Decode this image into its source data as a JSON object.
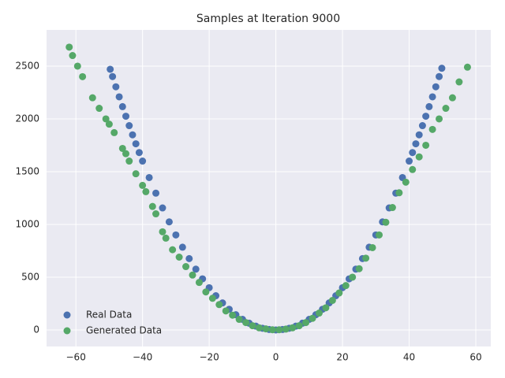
{
  "chart_data": {
    "type": "scatter",
    "title": "Samples at Iteration 9000",
    "xlim": [
      -68.8,
      64.5
    ],
    "ylim": [
      -157,
      2843
    ],
    "xticks": [
      {
        "value": -60,
        "label": "−60"
      },
      {
        "value": -40,
        "label": "−40"
      },
      {
        "value": -20,
        "label": "−20"
      },
      0,
      20,
      40,
      60
    ],
    "yticks": [
      0,
      500,
      1000,
      1500,
      2000,
      2500
    ],
    "grid": true,
    "legend": "lower left",
    "background": "#eaeaf2",
    "series": [
      {
        "name": "Real Data",
        "color": "#4c72b0",
        "x": [
          -49.7,
          -49,
          -48,
          -47,
          -46,
          -45,
          -44,
          -43,
          -42,
          -41,
          -40,
          -38,
          -36,
          -34,
          -32,
          -30,
          -28,
          -26,
          -24,
          -22,
          -20,
          -18,
          -16,
          -14,
          -12,
          -10,
          -8,
          -6,
          -4,
          -2,
          0,
          2,
          4,
          6,
          8,
          10,
          12,
          14,
          16,
          18,
          20,
          22,
          24,
          26,
          28,
          30,
          32,
          34,
          36,
          38,
          40,
          41,
          42,
          43,
          44,
          45,
          46,
          47,
          48,
          49,
          49.8
        ],
        "values": [
          2470,
          2401,
          2304,
          2209,
          2116,
          2025,
          1936,
          1849,
          1764,
          1681,
          1600,
          1444,
          1296,
          1156,
          1024,
          900,
          784,
          676,
          576,
          484,
          400,
          324,
          256,
          196,
          144,
          100,
          64,
          36,
          16,
          4,
          0,
          4,
          16,
          36,
          64,
          100,
          144,
          196,
          256,
          324,
          400,
          484,
          576,
          676,
          784,
          900,
          1024,
          1156,
          1296,
          1444,
          1600,
          1681,
          1764,
          1849,
          1936,
          2025,
          2116,
          2209,
          2304,
          2401,
          2480
        ]
      },
      {
        "name": "Generated Data",
        "color": "#55a868",
        "x": [
          -62,
          -61,
          -59.5,
          -58,
          -55,
          -53,
          -51,
          -50,
          -48.5,
          -46,
          -45,
          -44,
          -42,
          -40,
          -39,
          -37,
          -36,
          -34,
          -33,
          -31,
          -29,
          -27,
          -25,
          -23,
          -21,
          -19,
          -17,
          -15,
          -13,
          -11,
          -9,
          -7,
          -5,
          -3,
          -1,
          1,
          3,
          5,
          7,
          9,
          11,
          13,
          15,
          17,
          19,
          21,
          23,
          25,
          27,
          29,
          31,
          33,
          35,
          37,
          39,
          41,
          43,
          45,
          47,
          49,
          51,
          53,
          55,
          57.5
        ],
        "values": [
          2680,
          2600,
          2500,
          2400,
          2200,
          2100,
          2000,
          1950,
          1870,
          1720,
          1670,
          1600,
          1480,
          1370,
          1310,
          1170,
          1100,
          930,
          870,
          760,
          690,
          600,
          520,
          450,
          360,
          300,
          240,
          180,
          140,
          100,
          70,
          40,
          20,
          10,
          2,
          2,
          8,
          20,
          40,
          70,
          110,
          160,
          210,
          280,
          350,
          420,
          500,
          580,
          680,
          780,
          900,
          1020,
          1160,
          1300,
          1400,
          1520,
          1640,
          1750,
          1900,
          2000,
          2100,
          2200,
          2350,
          2490
        ]
      }
    ]
  }
}
